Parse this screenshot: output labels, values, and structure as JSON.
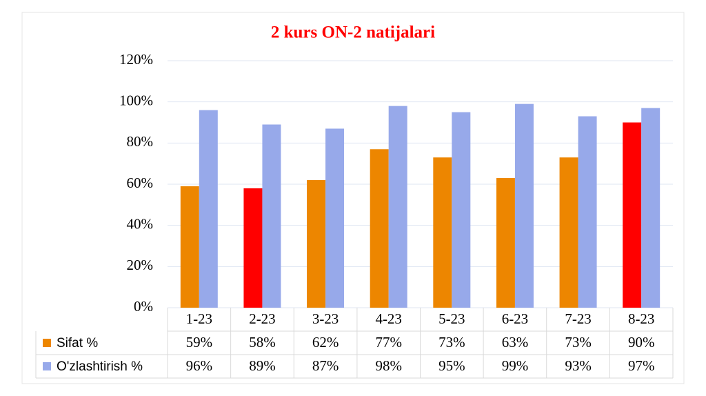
{
  "chart_data": {
    "type": "bar",
    "title": "2 kurs ON-2 natijalari",
    "categories": [
      "1-23",
      "2-23",
      "3-23",
      "4-23",
      "5-23",
      "6-23",
      "7-23",
      "8-23"
    ],
    "series": [
      {
        "name": "Sifat %",
        "color": "#ed8600",
        "point_colors": [
          "#ed8600",
          "#ff0000",
          "#ed8600",
          "#ed8600",
          "#ed8600",
          "#ed8600",
          "#ed8600",
          "#ff0000"
        ],
        "values": [
          59,
          58,
          62,
          77,
          73,
          63,
          73,
          90
        ],
        "value_labels": [
          "59%",
          "58%",
          "62%",
          "77%",
          "73%",
          "63%",
          "73%",
          "90%"
        ]
      },
      {
        "name": "O'zlashtirish %",
        "color": "#97a9ea",
        "values": [
          96,
          89,
          87,
          98,
          95,
          99,
          93,
          97
        ],
        "value_labels": [
          "96%",
          "89%",
          "87%",
          "98%",
          "95%",
          "99%",
          "93%",
          "97%"
        ]
      }
    ],
    "ylim": [
      0,
      120
    ],
    "yticks": [
      {
        "value": 0,
        "label": "0%"
      },
      {
        "value": 20,
        "label": "20%"
      },
      {
        "value": 40,
        "label": "40%"
      },
      {
        "value": 60,
        "label": "60%"
      },
      {
        "value": 80,
        "label": "80%"
      },
      {
        "value": 100,
        "label": "100%"
      },
      {
        "value": 120,
        "label": "120%"
      }
    ],
    "grid": true,
    "data_table": true
  }
}
